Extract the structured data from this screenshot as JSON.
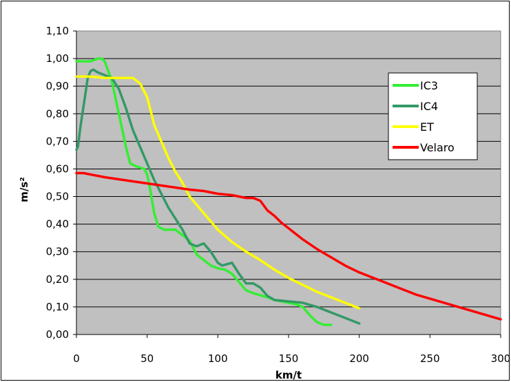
{
  "chart_data": {
    "type": "line",
    "xlabel": "km/t",
    "ylabel": "m/s²",
    "xlim": [
      0,
      300
    ],
    "ylim": [
      0,
      1.1
    ],
    "x_ticks": [
      "0",
      "50",
      "100",
      "150",
      "200",
      "250",
      "300"
    ],
    "y_ticks": [
      "0,00",
      "0,10",
      "0,20",
      "0,30",
      "0,40",
      "0,50",
      "0,60",
      "0,70",
      "0,80",
      "0,90",
      "1,00",
      "1,10"
    ],
    "grid": "horizontal",
    "plot_background": "#c0c0c0",
    "legend_placement": "right",
    "series": [
      {
        "name": "IC3",
        "color": "#33ee33",
        "points": [
          [
            0,
            0.99
          ],
          [
            5,
            0.99
          ],
          [
            10,
            0.99
          ],
          [
            15,
            1.0
          ],
          [
            18,
            1.0
          ],
          [
            20,
            0.99
          ],
          [
            25,
            0.92
          ],
          [
            30,
            0.8
          ],
          [
            35,
            0.68
          ],
          [
            38,
            0.62
          ],
          [
            42,
            0.61
          ],
          [
            48,
            0.6
          ],
          [
            50,
            0.58
          ],
          [
            52,
            0.53
          ],
          [
            55,
            0.44
          ],
          [
            58,
            0.39
          ],
          [
            62,
            0.38
          ],
          [
            70,
            0.38
          ],
          [
            75,
            0.36
          ],
          [
            80,
            0.34
          ],
          [
            85,
            0.29
          ],
          [
            90,
            0.27
          ],
          [
            95,
            0.25
          ],
          [
            100,
            0.24
          ],
          [
            105,
            0.235
          ],
          [
            110,
            0.22
          ],
          [
            115,
            0.19
          ],
          [
            120,
            0.16
          ],
          [
            125,
            0.15
          ],
          [
            135,
            0.135
          ],
          [
            140,
            0.125
          ],
          [
            150,
            0.115
          ],
          [
            155,
            0.11
          ],
          [
            160,
            0.1
          ],
          [
            165,
            0.07
          ],
          [
            170,
            0.045
          ],
          [
            175,
            0.035
          ],
          [
            180,
            0.035
          ]
        ]
      },
      {
        "name": "IC4",
        "color": "#339966",
        "points": [
          [
            0,
            0.67
          ],
          [
            1,
            0.68
          ],
          [
            3,
            0.76
          ],
          [
            6,
            0.86
          ],
          [
            8,
            0.93
          ],
          [
            10,
            0.955
          ],
          [
            12,
            0.96
          ],
          [
            15,
            0.95
          ],
          [
            20,
            0.94
          ],
          [
            25,
            0.93
          ],
          [
            30,
            0.89
          ],
          [
            35,
            0.82
          ],
          [
            40,
            0.74
          ],
          [
            45,
            0.68
          ],
          [
            50,
            0.62
          ],
          [
            55,
            0.56
          ],
          [
            60,
            0.51
          ],
          [
            65,
            0.46
          ],
          [
            70,
            0.42
          ],
          [
            75,
            0.38
          ],
          [
            80,
            0.33
          ],
          [
            85,
            0.32
          ],
          [
            90,
            0.33
          ],
          [
            95,
            0.3
          ],
          [
            100,
            0.26
          ],
          [
            103,
            0.25
          ],
          [
            110,
            0.26
          ],
          [
            115,
            0.22
          ],
          [
            120,
            0.185
          ],
          [
            125,
            0.185
          ],
          [
            130,
            0.17
          ],
          [
            135,
            0.14
          ],
          [
            140,
            0.125
          ],
          [
            150,
            0.12
          ],
          [
            160,
            0.115
          ],
          [
            170,
            0.1
          ],
          [
            180,
            0.08
          ],
          [
            190,
            0.06
          ],
          [
            200,
            0.04
          ]
        ]
      },
      {
        "name": "ET",
        "color": "#ffff00",
        "points": [
          [
            0,
            0.935
          ],
          [
            10,
            0.935
          ],
          [
            20,
            0.93
          ],
          [
            30,
            0.93
          ],
          [
            40,
            0.93
          ],
          [
            45,
            0.91
          ],
          [
            50,
            0.86
          ],
          [
            55,
            0.76
          ],
          [
            60,
            0.7
          ],
          [
            65,
            0.64
          ],
          [
            70,
            0.59
          ],
          [
            75,
            0.55
          ],
          [
            80,
            0.5
          ],
          [
            90,
            0.44
          ],
          [
            100,
            0.38
          ],
          [
            110,
            0.335
          ],
          [
            120,
            0.3
          ],
          [
            130,
            0.27
          ],
          [
            140,
            0.235
          ],
          [
            150,
            0.205
          ],
          [
            160,
            0.18
          ],
          [
            170,
            0.155
          ],
          [
            180,
            0.135
          ],
          [
            190,
            0.115
          ],
          [
            200,
            0.095
          ]
        ]
      },
      {
        "name": "Velaro",
        "color": "#ff0000",
        "points": [
          [
            0,
            0.585
          ],
          [
            5,
            0.585
          ],
          [
            20,
            0.57
          ],
          [
            40,
            0.555
          ],
          [
            60,
            0.54
          ],
          [
            80,
            0.525
          ],
          [
            90,
            0.52
          ],
          [
            100,
            0.51
          ],
          [
            110,
            0.505
          ],
          [
            120,
            0.495
          ],
          [
            125,
            0.495
          ],
          [
            130,
            0.485
          ],
          [
            135,
            0.45
          ],
          [
            140,
            0.43
          ],
          [
            145,
            0.405
          ],
          [
            150,
            0.385
          ],
          [
            160,
            0.345
          ],
          [
            170,
            0.31
          ],
          [
            180,
            0.28
          ],
          [
            190,
            0.25
          ],
          [
            200,
            0.225
          ],
          [
            210,
            0.205
          ],
          [
            220,
            0.185
          ],
          [
            230,
            0.165
          ],
          [
            240,
            0.145
          ],
          [
            250,
            0.13
          ],
          [
            260,
            0.115
          ],
          [
            270,
            0.1
          ],
          [
            280,
            0.085
          ],
          [
            290,
            0.07
          ],
          [
            300,
            0.055
          ]
        ]
      }
    ]
  }
}
